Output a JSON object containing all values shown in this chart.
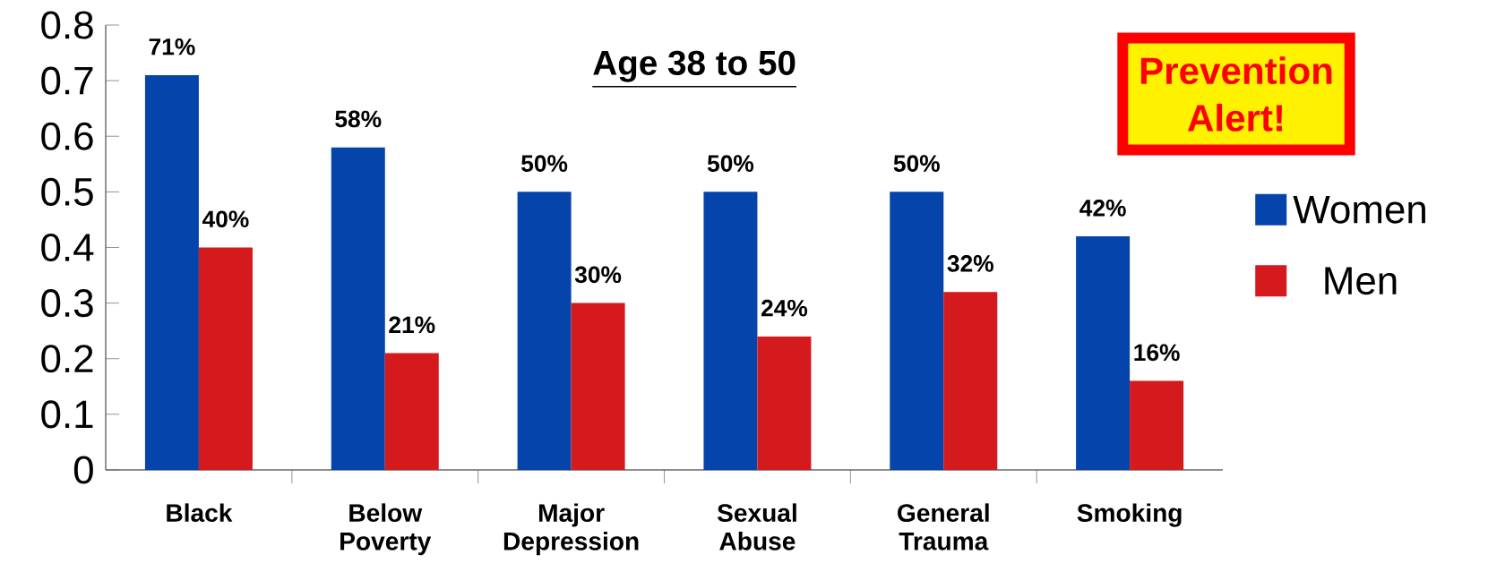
{
  "chart_data": {
    "type": "bar",
    "title": "Age 38 to 50",
    "categories": [
      "Black",
      "Below Poverty",
      "Major Depression",
      "Sexual Abuse",
      "General Trauma",
      "Smoking"
    ],
    "series": [
      {
        "name": "Women",
        "color": "#0544aa",
        "values": [
          0.71,
          0.58,
          0.5,
          0.5,
          0.5,
          0.42
        ],
        "value_labels": [
          "71%",
          "58%",
          "50%",
          "50%",
          "50%",
          "42%"
        ]
      },
      {
        "name": "Men",
        "color": "#d41a1c",
        "values": [
          0.4,
          0.21,
          0.3,
          0.24,
          0.32,
          0.16
        ],
        "value_labels": [
          "40%",
          "21%",
          "30%",
          "24%",
          "32%",
          "16%"
        ]
      }
    ],
    "ylim": [
      0,
      0.8
    ],
    "yticks": [
      0,
      0.1,
      0.2,
      0.3,
      0.4,
      0.5,
      0.6,
      0.7,
      0.8
    ],
    "grid": false,
    "legend": "right",
    "annotations": [
      "Prevention Alert!"
    ]
  }
}
